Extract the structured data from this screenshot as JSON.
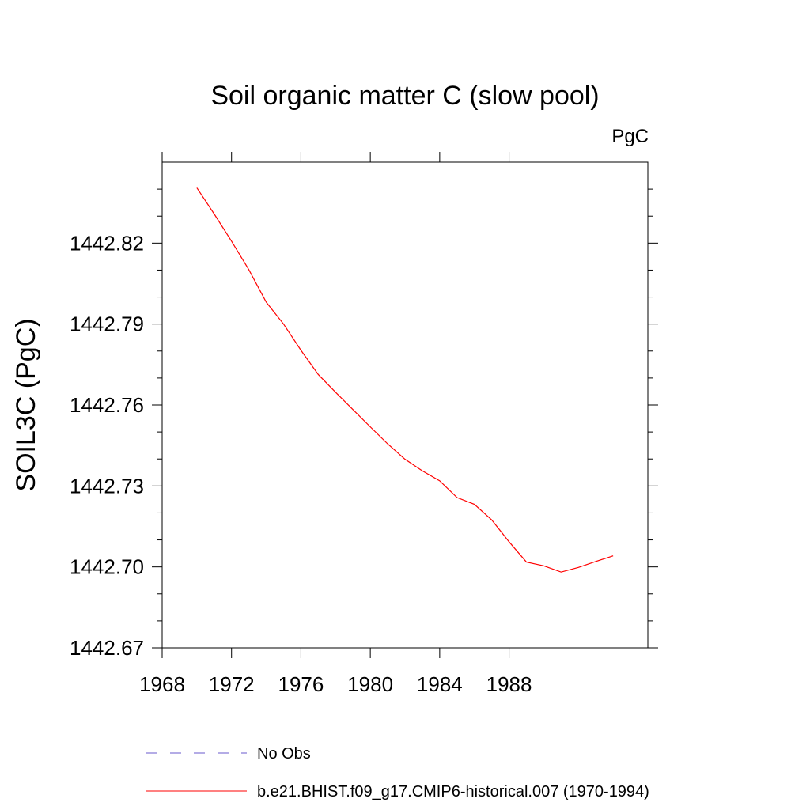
{
  "chart_data": {
    "type": "line",
    "title": "Soil organic matter C (slow pool)",
    "units_label": "PgC",
    "xlabel": "",
    "ylabel": "SOIL3C  (PgC)",
    "xlim": [
      1968,
      1996
    ],
    "ylim": [
      1442.67,
      1442.85
    ],
    "x_ticks": [
      1968,
      1972,
      1976,
      1980,
      1984,
      1988
    ],
    "x_tick_labels": [
      "1968",
      "1972",
      "1976",
      "1980",
      "1984",
      "1988"
    ],
    "y_ticks": [
      1442.67,
      1442.7,
      1442.73,
      1442.76,
      1442.79,
      1442.82
    ],
    "y_tick_labels": [
      "1442.67",
      "1442.70",
      "1442.73",
      "1442.76",
      "1442.79",
      "1442.82"
    ],
    "series": [
      {
        "name": "b.e21.BHIST.f09_g17.CMIP6-historical.007 (1970-1994)",
        "color": "#ff0000",
        "style": "solid",
        "x": [
          1970,
          1971,
          1972,
          1973,
          1974,
          1975,
          1976,
          1977,
          1978,
          1979,
          1980,
          1981,
          1982,
          1983,
          1984,
          1985,
          1986,
          1987,
          1988,
          1989,
          1990,
          1991,
          1992,
          1993,
          1994
        ],
        "y": [
          1442.8405,
          1442.8308,
          1442.8207,
          1442.8101,
          1442.7981,
          1442.79,
          1442.7803,
          1442.7713,
          1442.7647,
          1442.7583,
          1442.7519,
          1442.7456,
          1442.7399,
          1442.7356,
          1442.7319,
          1442.7257,
          1442.7232,
          1442.7174,
          1442.7093,
          1442.7018,
          1442.7004,
          1442.6981,
          1442.6998,
          1442.702,
          1442.7041
        ]
      }
    ],
    "legend": [
      {
        "label": "No Obs",
        "color": "#6a5acd",
        "style": "dashed"
      },
      {
        "label": "b.e21.BHIST.f09_g17.CMIP6-historical.007 (1970-1994)",
        "color": "#ff0000",
        "style": "solid"
      }
    ],
    "legend_position": "bottom"
  }
}
